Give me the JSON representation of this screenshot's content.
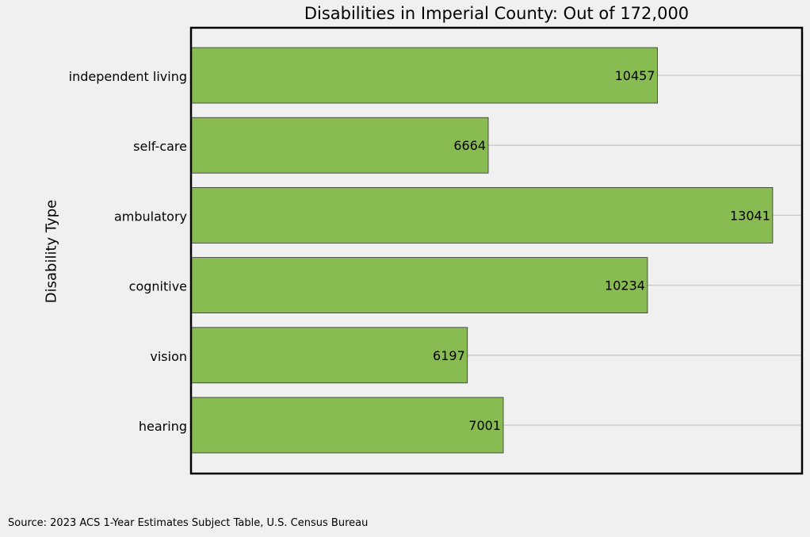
{
  "chart_data": {
    "type": "bar",
    "orientation": "horizontal",
    "title": "Disabilities in Imperial County: Out of 172,000",
    "xlabel": "",
    "ylabel": "Disability Type",
    "categories": [
      "independent living",
      "self-care",
      "ambulatory",
      "cognitive",
      "vision",
      "hearing"
    ],
    "values": [
      10457,
      6664,
      13041,
      10234,
      6197,
      7001
    ],
    "xlim": [
      0,
      13700
    ],
    "grid": "horizontal lines on",
    "bar_color": "#88bb52",
    "bar_edge_color": "#333333",
    "background": "#f0f0f0"
  },
  "source": "Source: 2023 ACS 1-Year Estimates Subject Table, U.S. Census Bureau"
}
